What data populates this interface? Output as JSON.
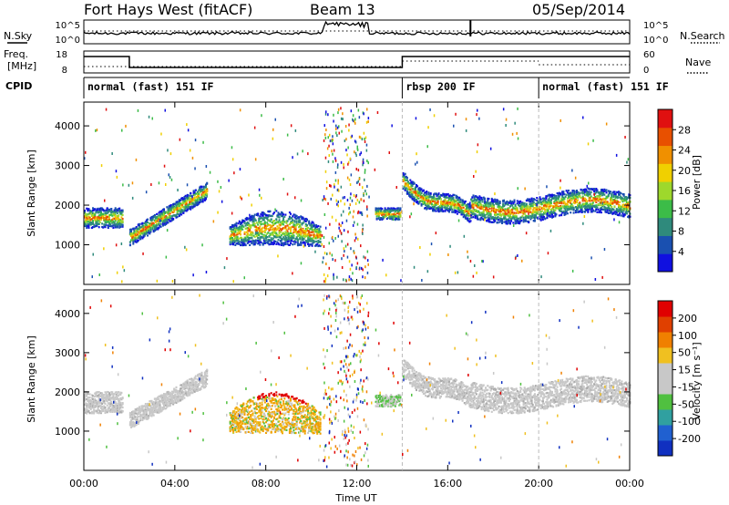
{
  "header": {
    "station": "Fort Hays West (fitACF)",
    "beam": "Beam 13",
    "date": "05/Sep/2014"
  },
  "left_labels": {
    "nsky": "N.Sky",
    "freq_top": "Freq.",
    "freq_unit": "[MHz]",
    "cpid": "CPID"
  },
  "right_labels": {
    "nsearch": "N.Search",
    "nave": "Nave"
  },
  "noise_panel": {
    "left_ticks": [
      "10^5",
      "10^0"
    ],
    "right_ticks": [
      "10^5",
      "10^0"
    ]
  },
  "freq_panel": {
    "left_ticks": [
      "18",
      "8"
    ],
    "right_ticks": [
      "60",
      "0"
    ]
  },
  "cpid_segments": [
    {
      "label": "normal (fast) 151 IF",
      "start": 0,
      "end": 14
    },
    {
      "label": "rbsp 200 IF",
      "start": 14,
      "end": 20
    },
    {
      "label": "normal (fast) 151 IF",
      "start": 20,
      "end": 24
    }
  ],
  "x_axis": {
    "label": "Time UT",
    "ticks": [
      "00:00",
      "04:00",
      "08:00",
      "12:00",
      "16:00",
      "20:00",
      "00:00"
    ],
    "tick_hours": [
      0,
      4,
      8,
      12,
      16,
      20,
      24
    ]
  },
  "colors": {
    "scatter_power": [
      "#2a3ec0",
      "#33c070",
      "#f0c000",
      "#e04010"
    ],
    "scatter_velocity": [
      "#c8c8c8",
      "#f0a000",
      "#40b040",
      "#d02020"
    ],
    "noise_line": "#000000"
  },
  "chart_data": [
    {
      "type": "heatmap",
      "name": "Power",
      "ylabel": "Slant Range [km]",
      "yticks": [
        1000,
        2000,
        3000,
        4000
      ],
      "ylim": [
        0,
        4600
      ],
      "xlim": [
        0,
        24
      ],
      "colorbar": {
        "label": "Power [dB]",
        "ticks": [
          "4",
          "8",
          "12",
          "16",
          "20",
          "24",
          "28"
        ],
        "colors": [
          "#1010e0",
          "#1a50b0",
          "#2f8a7c",
          "#3cbc48",
          "#9ed82c",
          "#f0d000",
          "#f09000",
          "#e85000",
          "#e01010"
        ]
      }
    },
    {
      "type": "heatmap",
      "name": "Velocity",
      "ylabel": "Slant Range [km]",
      "yticks": [
        1000,
        2000,
        3000,
        4000
      ],
      "ylim": [
        0,
        4600
      ],
      "xlim": [
        0,
        24
      ],
      "colorbar": {
        "label": "Velocity [m s⁻¹]",
        "ticks": [
          "200",
          "100",
          "50",
          "15",
          "-15",
          "-50",
          "-100",
          "-200"
        ],
        "colors": [
          "#1030c0",
          "#2060d0",
          "#30a0a0",
          "#50c040",
          "#c8c8c8",
          "#c8c8c8",
          "#f0c020",
          "#f08000",
          "#e04000",
          "#e00000"
        ]
      }
    }
  ]
}
